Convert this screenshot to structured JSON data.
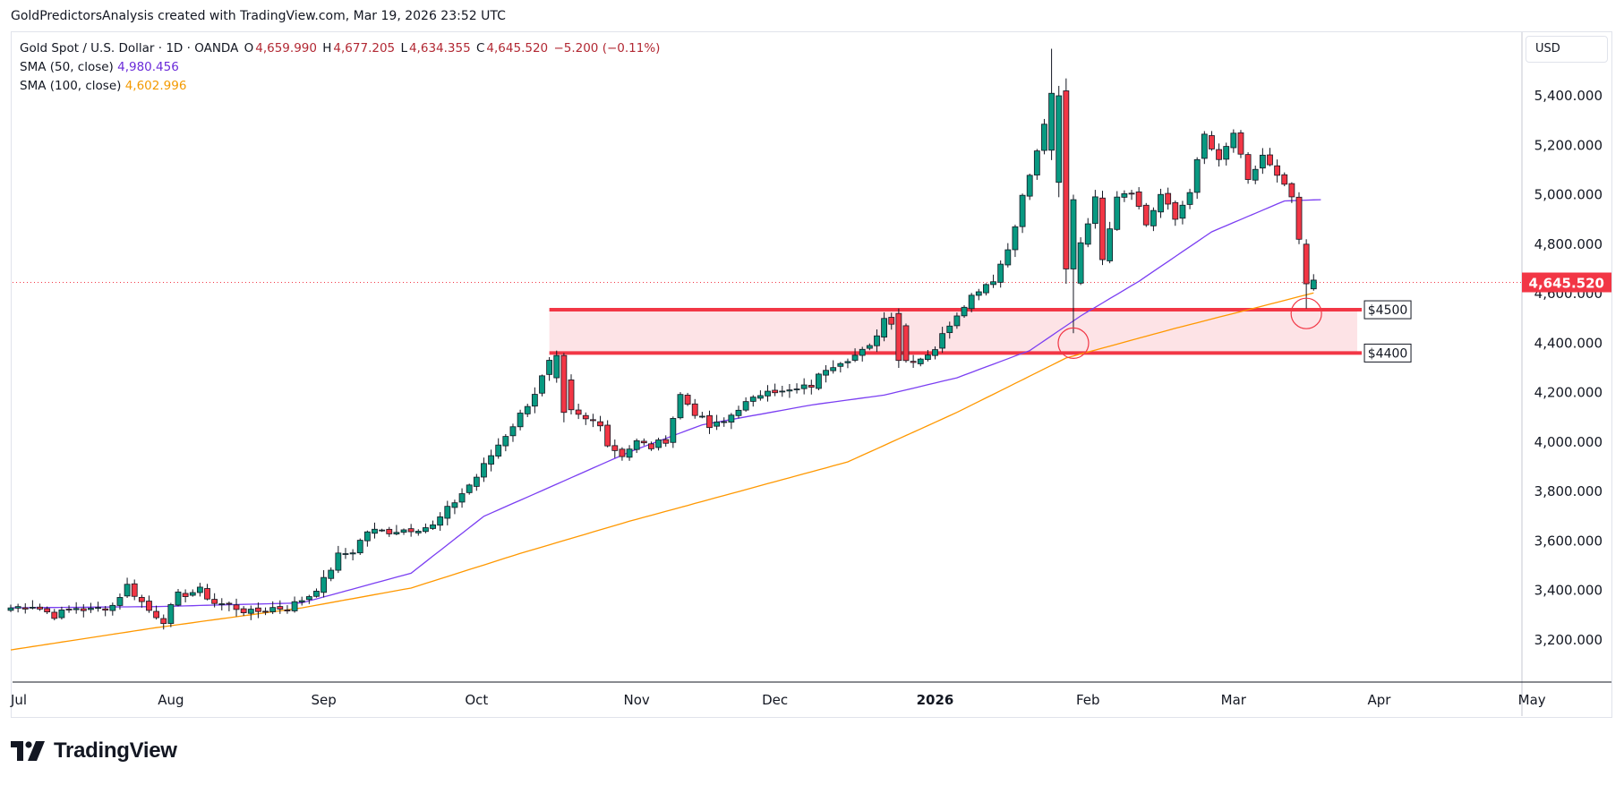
{
  "attribution": "GoldPredictorsAnalysis created with TradingView.com, Mar 19, 2026 23:52 UTC",
  "legend": {
    "symbol": "Gold Spot / U.S. Dollar · 1D · OANDA",
    "o_label": "O",
    "o": "4,659.990",
    "h_label": "H",
    "h": "4,677.205",
    "l_label": "L",
    "l": "4,634.355",
    "c_label": "C",
    "c": "4,645.520",
    "change": "−5.200 (−0.11%)",
    "sma50_label": "SMA (50, close)",
    "sma50": "4,980.456",
    "sma100_label": "SMA (100, close)",
    "sma100": "4,602.996"
  },
  "currency": "USD",
  "brand": "TradingView",
  "colors": {
    "up": "#089981",
    "down": "#f23645",
    "sma50": "#7b3ff2",
    "sma100": "#ff9800",
    "zone_line": "#f23645",
    "zone_fill": "#fde3e6",
    "price_tag": "#f23645"
  },
  "chart_data": {
    "type": "candlestick",
    "symbol": "Gold Spot / U.S. Dollar",
    "interval": "1D",
    "ylim": [
      3000,
      5600
    ],
    "y_ticks": [
      "3,200.000",
      "3,400.000",
      "3,600.000",
      "3,800.000",
      "4,000.000",
      "4,200.000",
      "4,400.000",
      "4,600.000",
      "4,800.000",
      "5,000.000",
      "5,200.000",
      "5,400.000"
    ],
    "y_tick_values": [
      3200,
      3400,
      3600,
      3800,
      4000,
      4200,
      4400,
      4600,
      4800,
      5000,
      5200,
      5400
    ],
    "x_ticks": [
      "Jul",
      "Aug",
      "Sep",
      "Oct",
      "Nov",
      "Dec",
      "2026",
      "Feb",
      "Mar",
      "Apr",
      "May"
    ],
    "x_tick_bold": [
      false,
      false,
      false,
      false,
      false,
      false,
      true,
      false,
      false,
      false,
      false
    ],
    "x_tick_index": [
      0,
      22,
      43,
      64,
      86,
      105,
      127,
      148,
      168,
      188,
      209
    ],
    "last_price": "4,645.520",
    "last_price_value": 4645.52,
    "zones": [
      {
        "label": "$4500",
        "value": 4535
      },
      {
        "label": "$4400",
        "value": 4360
      }
    ],
    "zone_start_index": 74,
    "zone_end_index": 185,
    "circles": [
      {
        "index": 146,
        "value": 4400
      },
      {
        "index": 178,
        "value": 4520
      }
    ],
    "series": [
      {
        "name": "SMA (50, close)",
        "values": []
      },
      {
        "name": "SMA (100, close)",
        "values": []
      }
    ],
    "close_anchors": [
      [
        0,
        3330
      ],
      [
        3,
        3340
      ],
      [
        6,
        3300
      ],
      [
        9,
        3330
      ],
      [
        11,
        3320
      ],
      [
        14,
        3340
      ],
      [
        16,
        3420
      ],
      [
        19,
        3320
      ],
      [
        21,
        3280
      ],
      [
        23,
        3380
      ],
      [
        26,
        3400
      ],
      [
        28,
        3350
      ],
      [
        30,
        3340
      ],
      [
        33,
        3310
      ],
      [
        36,
        3330
      ],
      [
        38,
        3330
      ],
      [
        41,
        3380
      ],
      [
        43,
        3440
      ],
      [
        45,
        3540
      ],
      [
        47,
        3560
      ],
      [
        49,
        3640
      ],
      [
        52,
        3640
      ],
      [
        55,
        3650
      ],
      [
        58,
        3660
      ],
      [
        61,
        3760
      ],
      [
        64,
        3860
      ],
      [
        67,
        3990
      ],
      [
        70,
        4110
      ],
      [
        72,
        4200
      ],
      [
        74,
        4320
      ],
      [
        75,
        4350
      ],
      [
        77,
        4120
      ],
      [
        79,
        4090
      ],
      [
        81,
        4080
      ],
      [
        82,
        3990
      ],
      [
        84,
        3950
      ],
      [
        86,
        4000
      ],
      [
        88,
        3980
      ],
      [
        90,
        4010
      ],
      [
        92,
        4190
      ],
      [
        94,
        4120
      ],
      [
        96,
        4060
      ],
      [
        98,
        4080
      ],
      [
        100,
        4140
      ],
      [
        102,
        4170
      ],
      [
        104,
        4220
      ],
      [
        106,
        4200
      ],
      [
        108,
        4210
      ],
      [
        110,
        4230
      ],
      [
        112,
        4300
      ],
      [
        114,
        4330
      ],
      [
        116,
        4350
      ],
      [
        118,
        4380
      ],
      [
        120,
        4500
      ],
      [
        122,
        4480
      ],
      [
        123,
        4330
      ],
      [
        125,
        4340
      ],
      [
        127,
        4380
      ],
      [
        129,
        4480
      ],
      [
        131,
        4560
      ],
      [
        133,
        4620
      ],
      [
        135,
        4660
      ],
      [
        137,
        4780
      ],
      [
        139,
        4990
      ],
      [
        141,
        5170
      ],
      [
        143,
        5410
      ],
      [
        145,
        4680
      ],
      [
        146,
        4650
      ],
      [
        147,
        4810
      ],
      [
        149,
        4980
      ],
      [
        150,
        4750
      ],
      [
        152,
        5000
      ],
      [
        154,
        5020
      ],
      [
        156,
        4880
      ],
      [
        158,
        5000
      ],
      [
        160,
        4900
      ],
      [
        162,
        5020
      ],
      [
        164,
        5240
      ],
      [
        166,
        5130
      ],
      [
        168,
        5250
      ],
      [
        170,
        5050
      ],
      [
        172,
        5160
      ],
      [
        174,
        5070
      ],
      [
        176,
        4990
      ],
      [
        177,
        4820
      ],
      [
        178,
        4620
      ],
      [
        179,
        4645
      ]
    ],
    "sma50_anchors": [
      [
        0,
        3330
      ],
      [
        20,
        3335
      ],
      [
        40,
        3350
      ],
      [
        55,
        3470
      ],
      [
        65,
        3700
      ],
      [
        75,
        3830
      ],
      [
        85,
        3960
      ],
      [
        95,
        4070
      ],
      [
        110,
        4150
      ],
      [
        120,
        4190
      ],
      [
        130,
        4260
      ],
      [
        140,
        4370
      ],
      [
        147,
        4510
      ],
      [
        155,
        4650
      ],
      [
        165,
        4850
      ],
      [
        175,
        4975
      ],
      [
        180,
        4980
      ]
    ],
    "sma100_anchors": [
      [
        0,
        3160
      ],
      [
        20,
        3250
      ],
      [
        40,
        3330
      ],
      [
        55,
        3410
      ],
      [
        70,
        3550
      ],
      [
        85,
        3680
      ],
      [
        100,
        3800
      ],
      [
        115,
        3920
      ],
      [
        130,
        4120
      ],
      [
        145,
        4340
      ],
      [
        160,
        4460
      ],
      [
        172,
        4550
      ],
      [
        179,
        4603
      ]
    ]
  }
}
